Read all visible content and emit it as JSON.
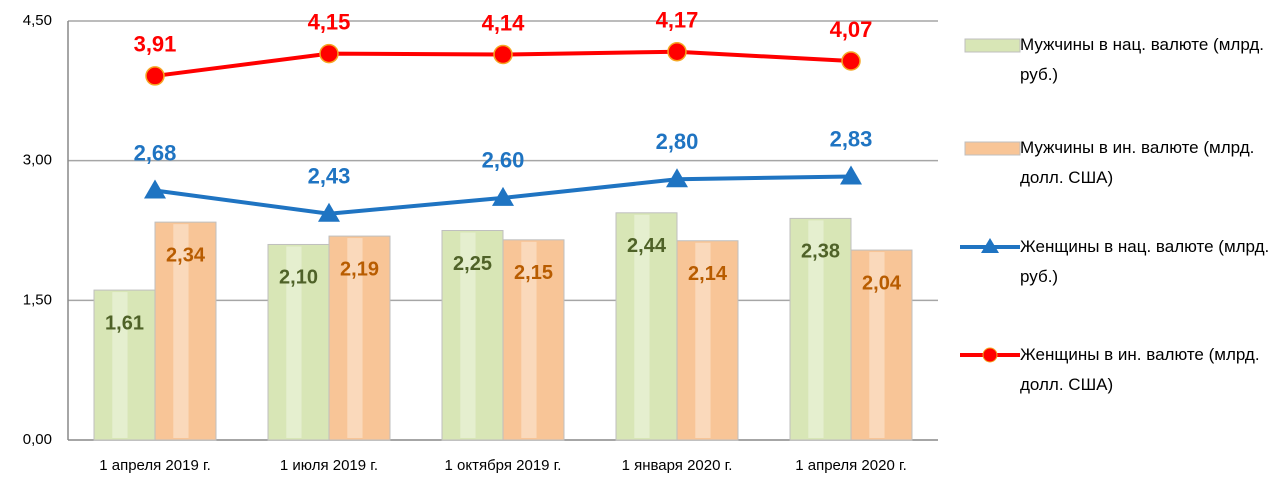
{
  "chart_data": {
    "type": "combo",
    "categories": [
      "1 апреля 2019 г.",
      "1 июля 2019 г.",
      "1 октября 2019 г.",
      "1 января 2020 г.",
      "1 апреля 2020 г."
    ],
    "series": [
      {
        "name": "Мужчины в нац. валюте (млрд. руб.)",
        "type": "bar",
        "color": "#d8e6b6",
        "label_color": "#4f6228",
        "values": [
          1.61,
          2.1,
          2.25,
          2.44,
          2.38
        ],
        "value_labels": [
          "1,61",
          "2,10",
          "2,25",
          "2,44",
          "2,38"
        ]
      },
      {
        "name": "Мужчины в ин. валюте (млрд. долл. США)",
        "type": "bar",
        "color": "#f8c597",
        "label_color": "#b85c00",
        "values": [
          2.34,
          2.19,
          2.15,
          2.14,
          2.04
        ],
        "value_labels": [
          "2,34",
          "2,19",
          "2,15",
          "2,14",
          "2,04"
        ]
      },
      {
        "name": "Женщины в нац. валюте (млрд. руб.)",
        "type": "line",
        "marker": "triangle",
        "color": "#1f74c2",
        "label_color": "#1f74c2",
        "values": [
          2.68,
          2.43,
          2.6,
          2.8,
          2.83
        ],
        "value_labels": [
          "2,68",
          "2,43",
          "2,60",
          "2,80",
          "2,83"
        ]
      },
      {
        "name": "Женщины в ин. валюте (млрд. долл. США)",
        "type": "line",
        "marker": "circle",
        "color": "#ff0000",
        "label_color": "#ff0000",
        "values": [
          3.91,
          4.15,
          4.14,
          4.17,
          4.07
        ],
        "value_labels": [
          "3,91",
          "4,15",
          "4,14",
          "4,17",
          "4,07"
        ]
      }
    ],
    "ylim": [
      0,
      4.5
    ],
    "yticks": [
      {
        "value": 0,
        "label": "0,00"
      },
      {
        "value": 1.5,
        "label": "1,50"
      },
      {
        "value": 3,
        "label": "3,00"
      },
      {
        "value": 4.5,
        "label": "4,50"
      }
    ],
    "grid": true,
    "legend": "right"
  }
}
